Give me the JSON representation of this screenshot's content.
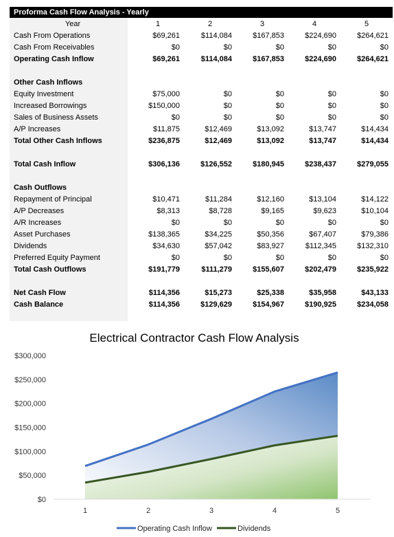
{
  "table": {
    "title": "Proforma Cash Flow Analysis - Yearly",
    "year_label": "Year",
    "years": [
      "1",
      "2",
      "3",
      "4",
      "5"
    ],
    "rows": [
      {
        "label": "Cash From Operations",
        "values": [
          "$69,261",
          "$114,084",
          "$167,853",
          "$224,690",
          "$264,621"
        ],
        "bold": false
      },
      {
        "label": "Cash From Receivables",
        "values": [
          "$0",
          "$0",
          "$0",
          "$0",
          "$0"
        ],
        "bold": false
      },
      {
        "label": "Operating Cash Inflow",
        "values": [
          "$69,261",
          "$114,084",
          "$167,853",
          "$224,690",
          "$264,621"
        ],
        "bold": true
      },
      {
        "blank": true
      },
      {
        "label": "Other Cash Inflows",
        "values": [],
        "bold": true
      },
      {
        "label": "Equity Investment",
        "values": [
          "$75,000",
          "$0",
          "$0",
          "$0",
          "$0"
        ],
        "bold": false
      },
      {
        "label": "Increased Borrowings",
        "values": [
          "$150,000",
          "$0",
          "$0",
          "$0",
          "$0"
        ],
        "bold": false
      },
      {
        "label": "Sales of Business Assets",
        "values": [
          "$0",
          "$0",
          "$0",
          "$0",
          "$0"
        ],
        "bold": false
      },
      {
        "label": "A/P Increases",
        "values": [
          "$11,875",
          "$12,469",
          "$13,092",
          "$13,747",
          "$14,434"
        ],
        "bold": false
      },
      {
        "label": "Total Other Cash Inflows",
        "values": [
          "$236,875",
          "$12,469",
          "$13,092",
          "$13,747",
          "$14,434"
        ],
        "bold": true
      },
      {
        "blank": true
      },
      {
        "label": "Total Cash Inflow",
        "values": [
          "$306,136",
          "$126,552",
          "$180,945",
          "$238,437",
          "$279,055"
        ],
        "bold": true
      },
      {
        "blank": true
      },
      {
        "label": "Cash Outflows",
        "values": [],
        "bold": true
      },
      {
        "label": "Repayment of Principal",
        "values": [
          "$10,471",
          "$11,284",
          "$12,160",
          "$13,104",
          "$14,122"
        ],
        "bold": false
      },
      {
        "label": "A/P Decreases",
        "values": [
          "$8,313",
          "$8,728",
          "$9,165",
          "$9,623",
          "$10,104"
        ],
        "bold": false
      },
      {
        "label": "A/R Increases",
        "values": [
          "$0",
          "$0",
          "$0",
          "$0",
          "$0"
        ],
        "bold": false
      },
      {
        "label": "Asset Purchases",
        "values": [
          "$138,365",
          "$34,225",
          "$50,356",
          "$67,407",
          "$79,386"
        ],
        "bold": false
      },
      {
        "label": "Dividends",
        "values": [
          "$34,630",
          "$57,042",
          "$83,927",
          "$112,345",
          "$132,310"
        ],
        "bold": false
      },
      {
        "label": "Preferred Equity Payment",
        "values": [
          "$0",
          "$0",
          "$0",
          "$0",
          "$0"
        ],
        "bold": false
      },
      {
        "label": "Total Cash Outflows",
        "values": [
          "$191,779",
          "$111,279",
          "$155,607",
          "$202,479",
          "$235,922"
        ],
        "bold": true
      },
      {
        "blank": true
      },
      {
        "label": "Net Cash Flow",
        "values": [
          "$114,356",
          "$15,273",
          "$25,338",
          "$35,958",
          "$43,133"
        ],
        "bold": true
      },
      {
        "label": "Cash Balance",
        "values": [
          "$114,356",
          "$129,629",
          "$154,967",
          "$190,925",
          "$234,058"
        ],
        "bold": true
      }
    ]
  },
  "chart_data": {
    "type": "area",
    "title": "Electrical Contractor Cash Flow Analysis",
    "categories": [
      "1",
      "2",
      "3",
      "4",
      "5"
    ],
    "series": [
      {
        "name": "Operating Cash Inflow",
        "values": [
          69261,
          114084,
          167853,
          224690,
          264621
        ],
        "color": "#4472c4"
      },
      {
        "name": "Dividends",
        "values": [
          34630,
          57042,
          83927,
          112345,
          132310
        ],
        "color": "#375623"
      }
    ],
    "ylim": [
      0,
      300000
    ],
    "yticks": [
      0,
      50000,
      100000,
      150000,
      200000,
      250000,
      300000
    ],
    "ytick_labels": [
      "$0",
      "$50,000",
      "$100,000",
      "$150,000",
      "$200,000",
      "$250,000",
      "$300,000"
    ],
    "grid": false,
    "legend": "bottom"
  }
}
